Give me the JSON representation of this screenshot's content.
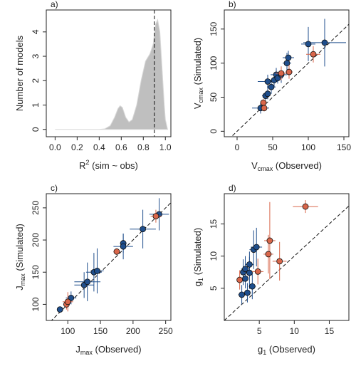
{
  "chart_data": [
    {
      "type": "area",
      "title": "a)",
      "xlabel": {
        "text": "R",
        "sup": "2",
        "after": " (sim ~ obs)"
      },
      "ylabel": {
        "text": "Number of models"
      },
      "x": [
        0.0,
        0.4,
        0.45,
        0.5,
        0.54,
        0.57,
        0.59,
        0.61,
        0.64,
        0.67,
        0.7,
        0.74,
        0.78,
        0.82,
        0.86,
        0.89,
        0.91,
        0.93,
        0.95,
        0.97,
        0.99,
        1.0,
        1.02
      ],
      "values": [
        0,
        0,
        0.02,
        0.15,
        0.5,
        0.85,
        0.97,
        0.9,
        0.5,
        0.3,
        0.4,
        1.0,
        2.0,
        2.8,
        3.1,
        3.5,
        4.3,
        4.5,
        4.0,
        2.5,
        1.0,
        0.4,
        0
      ],
      "color": "#bfbfbf",
      "vline": 0.9,
      "xlim": [
        -0.08,
        1.05
      ],
      "ylim": [
        -0.3,
        4.9
      ],
      "xticks": [
        {
          "value": 0,
          "label": "0.0"
        },
        {
          "value": 0.2,
          "label": "0.2"
        },
        {
          "value": 0.4,
          "label": "0.4"
        },
        {
          "value": 0.6,
          "label": "0.6"
        },
        {
          "value": 0.8,
          "label": "0.8"
        },
        {
          "value": 1,
          "label": "1.0"
        }
      ],
      "yticks": [
        0,
        1,
        2,
        3,
        4
      ]
    },
    {
      "type": "scatter",
      "title": "b)",
      "identity_line": true,
      "xlabel": {
        "text": "V",
        "sub": "cmax",
        "after": " (Observed)"
      },
      "ylabel": {
        "text": "V",
        "sub": "cmax",
        "after": " (Simulated)"
      },
      "xlim": [
        -18,
        157
      ],
      "ylim": [
        -8,
        178
      ],
      "xticks": [
        0,
        50,
        100,
        150
      ],
      "yticks": [
        0,
        50,
        100,
        150
      ],
      "series": [
        {
          "color": "#1f4e8c",
          "x": [
            33,
            40,
            43,
            43,
            48,
            52,
            55,
            57,
            62,
            70,
            72,
            100,
            123
          ],
          "values": [
            34,
            52,
            55,
            73,
            65,
            75,
            83,
            78,
            83,
            100,
            108,
            128,
            130
          ],
          "x_err": [
            12,
            5,
            4,
            14,
            6,
            6,
            8,
            7,
            8,
            6,
            8,
            10,
            30
          ],
          "y_err": [
            8,
            6,
            8,
            10,
            10,
            10,
            10,
            8,
            12,
            15,
            10,
            25,
            35
          ]
        },
        {
          "color": "#d9664a",
          "x": [
            37,
            38,
            62,
            73,
            107
          ],
          "values": [
            42,
            34,
            85,
            87,
            113
          ],
          "x_err": [
            4,
            3,
            8,
            5,
            10
          ],
          "y_err": [
            5,
            4,
            10,
            10,
            12
          ]
        }
      ]
    },
    {
      "type": "scatter",
      "title": "c)",
      "identity_line": true,
      "xlabel": {
        "text": "J",
        "sub": "max",
        "after": " (Observed)"
      },
      "ylabel": {
        "text": "J",
        "sub": "max",
        "after": " (Simulated)"
      },
      "xlim": [
        67,
        258
      ],
      "ylim": [
        75,
        272
      ],
      "xticks": [
        100,
        150,
        200,
        250
      ],
      "yticks": [
        100,
        150,
        200,
        250
      ],
      "series": [
        {
          "color": "#1f4e8c",
          "x": [
            88,
            105,
            125,
            130,
            140,
            145,
            185,
            185,
            215,
            240
          ],
          "values": [
            92,
            110,
            130,
            135,
            150,
            152,
            195,
            190,
            217,
            240
          ],
          "x_err": [
            3,
            8,
            15,
            20,
            12,
            10,
            5,
            15,
            20,
            15
          ],
          "y_err": [
            3,
            10,
            20,
            30,
            30,
            35,
            15,
            20,
            30,
            25
          ]
        },
        {
          "color": "#d9664a",
          "x": [
            98,
            100,
            175,
            235
          ],
          "values": [
            100,
            104,
            182,
            237
          ],
          "x_err": [
            5,
            8,
            5,
            8
          ],
          "y_err": [
            8,
            15,
            5,
            10
          ]
        }
      ]
    },
    {
      "type": "scatter",
      "title": "d)",
      "identity_line": true,
      "xlabel": {
        "text": "g",
        "sub": "1",
        "after": " (Observed)"
      },
      "ylabel": {
        "text": "g",
        "sub": "1",
        "after": " (Simulated)"
      },
      "xlim": [
        0,
        17.8
      ],
      "ylim": [
        0,
        19.7
      ],
      "xticks": [
        5,
        10,
        15
      ],
      "yticks": [
        5,
        10,
        15
      ],
      "series": [
        {
          "color": "#1f4e8c",
          "x": [
            2.5,
            2.7,
            3,
            3,
            3.3,
            3.6,
            3.6,
            4,
            4.2,
            4.6
          ],
          "values": [
            4,
            7.5,
            6.5,
            8,
            4.3,
            8.7,
            7.4,
            5.3,
            11,
            11.4
          ],
          "x_err": [
            0.5,
            0.5,
            0.4,
            0.6,
            0.5,
            0.6,
            0.5,
            0.5,
            0.6,
            0.8
          ],
          "y_err": [
            1.5,
            2,
            1.5,
            2,
            1.5,
            2,
            2.5,
            2,
            3,
            3
          ]
        },
        {
          "color": "#d9664a",
          "x": [
            2.2,
            4.8,
            6.3,
            6.5,
            7.9,
            11.6
          ],
          "values": [
            6.3,
            7.6,
            10.3,
            12.4,
            9.2,
            17.7
          ],
          "x_err": [
            0.4,
            0.8,
            0.7,
            0.8,
            1,
            1.8
          ],
          "y_err": [
            1.5,
            2,
            3,
            6,
            3,
            1
          ]
        }
      ]
    }
  ]
}
